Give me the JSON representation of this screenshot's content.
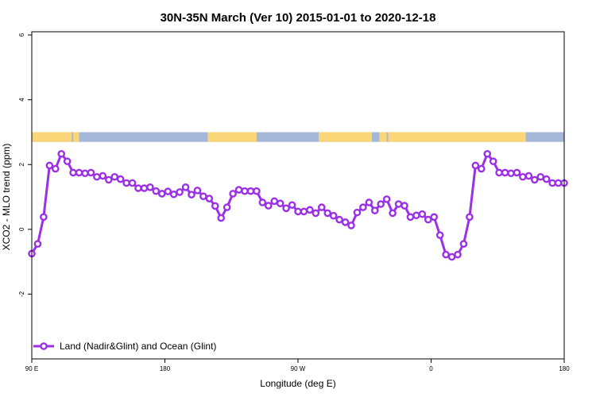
{
  "chart_data": {
    "type": "line",
    "title": "30N-35N March (Ver 10)   2015-01-01 to 2020-12-18",
    "xlabel": "Longitude (deg E)",
    "ylabel": "XCO2 - MLO trend (ppm)",
    "xlim": [
      90,
      450
    ],
    "ylim": [
      -4,
      6.1
    ],
    "x_ticks": [
      {
        "value": 90,
        "label": "90 E"
      },
      {
        "value": 180,
        "label": "180"
      },
      {
        "value": 270,
        "label": "90 W"
      },
      {
        "value": 360,
        "label": "0"
      },
      {
        "value": 450,
        "label": "180"
      }
    ],
    "y_ticks": [
      {
        "value": -2,
        "label": "-2"
      },
      {
        "value": 0,
        "label": "0"
      },
      {
        "value": 2,
        "label": "2"
      },
      {
        "value": 4,
        "label": "4"
      },
      {
        "value": 6,
        "label": "6"
      }
    ],
    "grid": false,
    "legend_position": "bottom-left",
    "surface_band": {
      "y_range": [
        2.7,
        3.0
      ],
      "ocean_color": "#a5b8d8",
      "land_color": "#fbd679",
      "land_segments": [
        [
          90,
          117
        ],
        [
          118,
          122
        ],
        [
          209,
          242
        ],
        [
          284,
          320
        ],
        [
          325,
          330
        ],
        [
          331,
          424
        ]
      ]
    },
    "series": [
      {
        "name": "Land (Nadir&Glint) and Ocean (Glint)",
        "color": "#9b30e6",
        "x": [
          90,
          94,
          98,
          102,
          106,
          110,
          114,
          118,
          122,
          126,
          130,
          134,
          138,
          142,
          146,
          150,
          154,
          158,
          162,
          166,
          170,
          174,
          178,
          182,
          186,
          190,
          194,
          198,
          202,
          206,
          210,
          214,
          218,
          222,
          226,
          230,
          234,
          238,
          242,
          246,
          250,
          254,
          258,
          262,
          266,
          270,
          274,
          278,
          282,
          286,
          290,
          294,
          298,
          302,
          306,
          310,
          314,
          318,
          322,
          326,
          330,
          334,
          338,
          342,
          346,
          350,
          354,
          358,
          362,
          366,
          370,
          374,
          378,
          382,
          386,
          390,
          394,
          398,
          402,
          406,
          410,
          414,
          418,
          422,
          426,
          430,
          434,
          438,
          442,
          446,
          450
        ],
        "values": [
          -0.75,
          -0.45,
          0.38,
          1.97,
          1.87,
          2.33,
          2.1,
          1.75,
          1.75,
          1.73,
          1.75,
          1.62,
          1.65,
          1.53,
          1.62,
          1.55,
          1.43,
          1.43,
          1.27,
          1.27,
          1.3,
          1.18,
          1.1,
          1.17,
          1.08,
          1.15,
          1.3,
          1.07,
          1.2,
          1.02,
          0.95,
          0.72,
          0.35,
          0.68,
          1.1,
          1.22,
          1.18,
          1.18,
          1.18,
          0.83,
          0.73,
          0.87,
          0.8,
          0.65,
          0.75,
          0.55,
          0.55,
          0.6,
          0.5,
          0.68,
          0.5,
          0.42,
          0.3,
          0.22,
          0.12,
          0.52,
          0.68,
          0.83,
          0.58,
          0.78,
          0.93,
          0.5,
          0.78,
          0.73,
          0.38,
          0.43,
          0.47,
          0.3,
          0.38,
          -0.18,
          -0.78,
          -0.85,
          -0.78,
          -0.45,
          0.38,
          1.97,
          1.87,
          2.33,
          2.1,
          1.75,
          1.75,
          1.73,
          1.75,
          1.62,
          1.65,
          1.53,
          1.62,
          1.55,
          1.43,
          1.43,
          1.43
        ]
      }
    ]
  }
}
